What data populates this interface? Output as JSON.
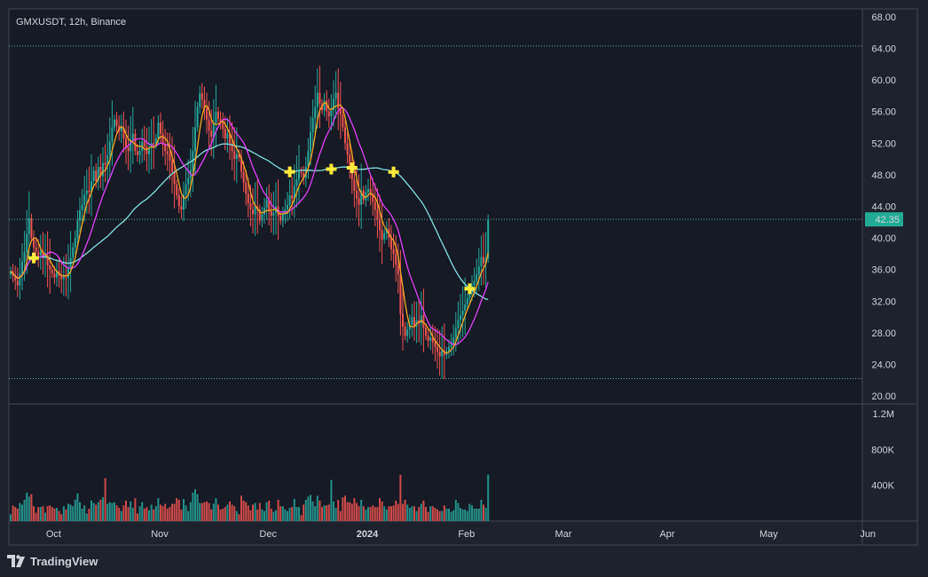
{
  "chart": {
    "symbol_label": "GMXUSDT, 12h, Binance",
    "current_price_label": "42.35",
    "brand": "TradingView"
  },
  "colors": {
    "background": "#1e222d",
    "plot_bg": "#161a25",
    "grid_border": "#434651",
    "up": "#26a69a",
    "down": "#ef5350",
    "ma_fast": "#f5a623",
    "ma_mid": "#e040fb",
    "ma_slow": "#7fdfdf",
    "cross_marker": "#ffeb3b",
    "price_tag": "#22ab94",
    "dotted_line": "#5fa8a0",
    "text": "#d1d4dc"
  },
  "chart_data": {
    "type": "candlestick",
    "price_axis": {
      "ticks": [
        "68.00",
        "64.00",
        "60.00",
        "56.00",
        "52.00",
        "48.00",
        "44.00",
        "40.00",
        "36.00",
        "32.00",
        "28.00",
        "24.00",
        "20.00"
      ],
      "tick_values": [
        68,
        64,
        60,
        56,
        52,
        48,
        44,
        40,
        36,
        32,
        28,
        24,
        20
      ],
      "range": [
        19,
        69
      ]
    },
    "volume_axis": {
      "ticks": [
        "1.2M",
        "800K",
        "400K"
      ],
      "tick_values": [
        1200000,
        800000,
        400000
      ],
      "range": [
        0,
        1300000
      ]
    },
    "time_axis": {
      "labels": [
        "Oct",
        "Nov",
        "Dec",
        "2024",
        "Feb",
        "Mar",
        "Apr",
        "May",
        "Jun"
      ],
      "label_x_index": [
        4,
        50,
        97,
        140,
        183,
        225,
        270,
        314,
        357
      ]
    },
    "reference_lines": [
      64.3,
      42.35,
      22.2
    ],
    "current_price": 42.35,
    "close_series": [
      35.8,
      35.2,
      34.6,
      34.0,
      35.5,
      37.0,
      38.2,
      40.5,
      42.5,
      40.0,
      38.8,
      38.2,
      37.8,
      38.4,
      37.5,
      37.8,
      36.5,
      36.0,
      35.5,
      35.0,
      35.8,
      35.2,
      34.8,
      35.3,
      35.0,
      36.2,
      37.5,
      38.8,
      40.0,
      42.2,
      43.5,
      44.2,
      45.5,
      46.0,
      45.8,
      47.2,
      48.5,
      47.2,
      49.0,
      47.8,
      49.5,
      49.2,
      50.5,
      52.2,
      54.0,
      55.0,
      54.2,
      53.5,
      54.0,
      52.6,
      51.5,
      51.0,
      52.4,
      53.2,
      51.0,
      50.5,
      51.0,
      52.2,
      51.6,
      50.6,
      51.4,
      52.0,
      51.8,
      52.6,
      54.6,
      53.2,
      51.8,
      51.0,
      50.6,
      49.8,
      48.4,
      46.8,
      45.4,
      44.0,
      43.6,
      45.5,
      46.8,
      47.6,
      48.6,
      51.0,
      54.0,
      56.6,
      58.3,
      57.5,
      56.4,
      55.0,
      53.6,
      52.8,
      54.5,
      56.0,
      55.1,
      54.6,
      53.8,
      52.6,
      53.2,
      52.0,
      51.0,
      50.0,
      50.6,
      50.2,
      48.4,
      47.0,
      45.6,
      44.4,
      43.6,
      43.0,
      44.0,
      43.6,
      42.2,
      43.0,
      43.8,
      44.8,
      43.4,
      42.8,
      43.2,
      44.0,
      42.8,
      42.2,
      43.0,
      43.6,
      44.2,
      45.4,
      45.0,
      46.6,
      47.4,
      48.4,
      48.2,
      47.6,
      49.0,
      51.0,
      53.4,
      55.2,
      56.6,
      58.4,
      57.0,
      56.2,
      57.4,
      56.0,
      55.4,
      56.2,
      57.6,
      58.4,
      56.4,
      55.6,
      54.0,
      52.0,
      50.6,
      49.0,
      47.4,
      46.0,
      45.0,
      44.2,
      46.0,
      44.8,
      45.8,
      46.2,
      45.6,
      44.6,
      43.6,
      42.4,
      41.0,
      39.8,
      40.6,
      41.2,
      40.0,
      38.6,
      38.0,
      36.6,
      35.4,
      30.4,
      28.8,
      27.6,
      28.4,
      29.0,
      30.0,
      28.8,
      29.6,
      29.2,
      30.2,
      28.6,
      27.6,
      27.0,
      27.4,
      26.8,
      26.2,
      25.6,
      25.0,
      25.8,
      25.2,
      25.6,
      26.2,
      26.6,
      27.4,
      28.6,
      29.6,
      30.2,
      30.8,
      31.6,
      32.4,
      33.2,
      34.0,
      34.6,
      35.4,
      36.4,
      37.6,
      36.8,
      37.4,
      42.35
    ],
    "moving_average_labels": [
      "MA fast (orange)",
      "MA medium (magenta)",
      "MA slow (cyan)"
    ],
    "crossover_markers_x_index": [
      10,
      121,
      139,
      148,
      166,
      199,
      229,
      307
    ]
  }
}
